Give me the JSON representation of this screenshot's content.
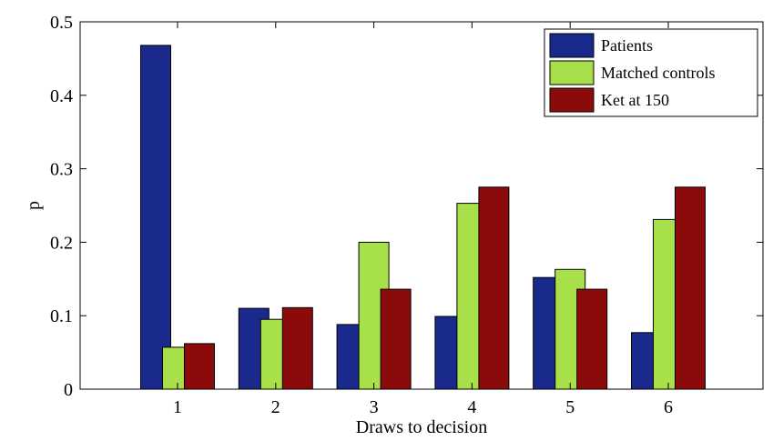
{
  "chart_data": {
    "type": "bar",
    "title": "",
    "xlabel": "Draws to decision",
    "ylabel": "p",
    "categories": [
      "1",
      "2",
      "3",
      "4",
      "5",
      "6"
    ],
    "ylim": [
      0,
      0.5
    ],
    "yticks": [
      "0",
      "0.1",
      "0.2",
      "0.3",
      "0.4",
      "0.5"
    ],
    "grid": false,
    "legend_position": "top-right",
    "series": [
      {
        "name": "Patients",
        "color": "#1a2a8c",
        "values": [
          0.468,
          0.11,
          0.088,
          0.099,
          0.152,
          0.077
        ]
      },
      {
        "name": "Matched controls",
        "color": "#a8e04a",
        "values": [
          0.057,
          0.095,
          0.2,
          0.253,
          0.163,
          0.231
        ]
      },
      {
        "name": "Ket at 150",
        "color": "#8b0a0a",
        "values": [
          0.062,
          0.111,
          0.136,
          0.275,
          0.136,
          0.275
        ]
      }
    ]
  }
}
